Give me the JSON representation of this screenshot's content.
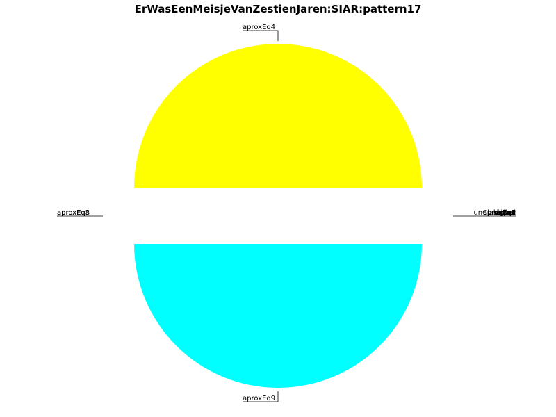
{
  "chart_data": {
    "type": "pie",
    "title": "ErWasEenMeisjeVanZestienJaren:SIAR:pattern17",
    "slices": [
      {
        "label": "aprox",
        "value": 0.0001,
        "color": "#ff0000"
      },
      {
        "label": "aproxEq1",
        "value": 0.0001,
        "color": "#00ff00"
      },
      {
        "label": "aproxEq2",
        "value": 0.0001,
        "color": "#0000ff"
      },
      {
        "label": "aproxEq3",
        "value": 0.0001,
        "color": "#ff00ff"
      },
      {
        "label": "aproxEq4",
        "value": 50,
        "color": "#ffff00"
      },
      {
        "label": "aproxEq5",
        "value": 0.0001,
        "color": "#808080"
      },
      {
        "label": "aproxEq6",
        "value": 0.0001,
        "color": "#800000"
      },
      {
        "label": "aproxEq7",
        "value": 0.0001,
        "color": "#008000"
      },
      {
        "label": "aproxEq8",
        "value": 0.0001,
        "color": "#000080"
      },
      {
        "label": "aproxEq9",
        "value": 50,
        "color": "#00ffff"
      },
      {
        "label": "equal",
        "value": 0.0001,
        "color": "#800080"
      },
      {
        "label": "higher",
        "value": 0.0001,
        "color": "#808000"
      },
      {
        "label": "lower",
        "value": 0.0001,
        "color": "#008080"
      },
      {
        "label": "unClassified",
        "value": 0.0001,
        "color": "#c0c0c0"
      }
    ],
    "display_labels": {
      "top": "aproxEq4",
      "bottom": "aproxEq9",
      "left": [
        "aproxEq8",
        "aproxEq3"
      ],
      "right": [
        "unClassified",
        "lower",
        "higher",
        "equal",
        "aproxEq7",
        "aproxEq6",
        "aproxEq5",
        "aproxEq2",
        "aproxEq1",
        "aprox"
      ]
    },
    "exploded": true,
    "legend": "none"
  }
}
